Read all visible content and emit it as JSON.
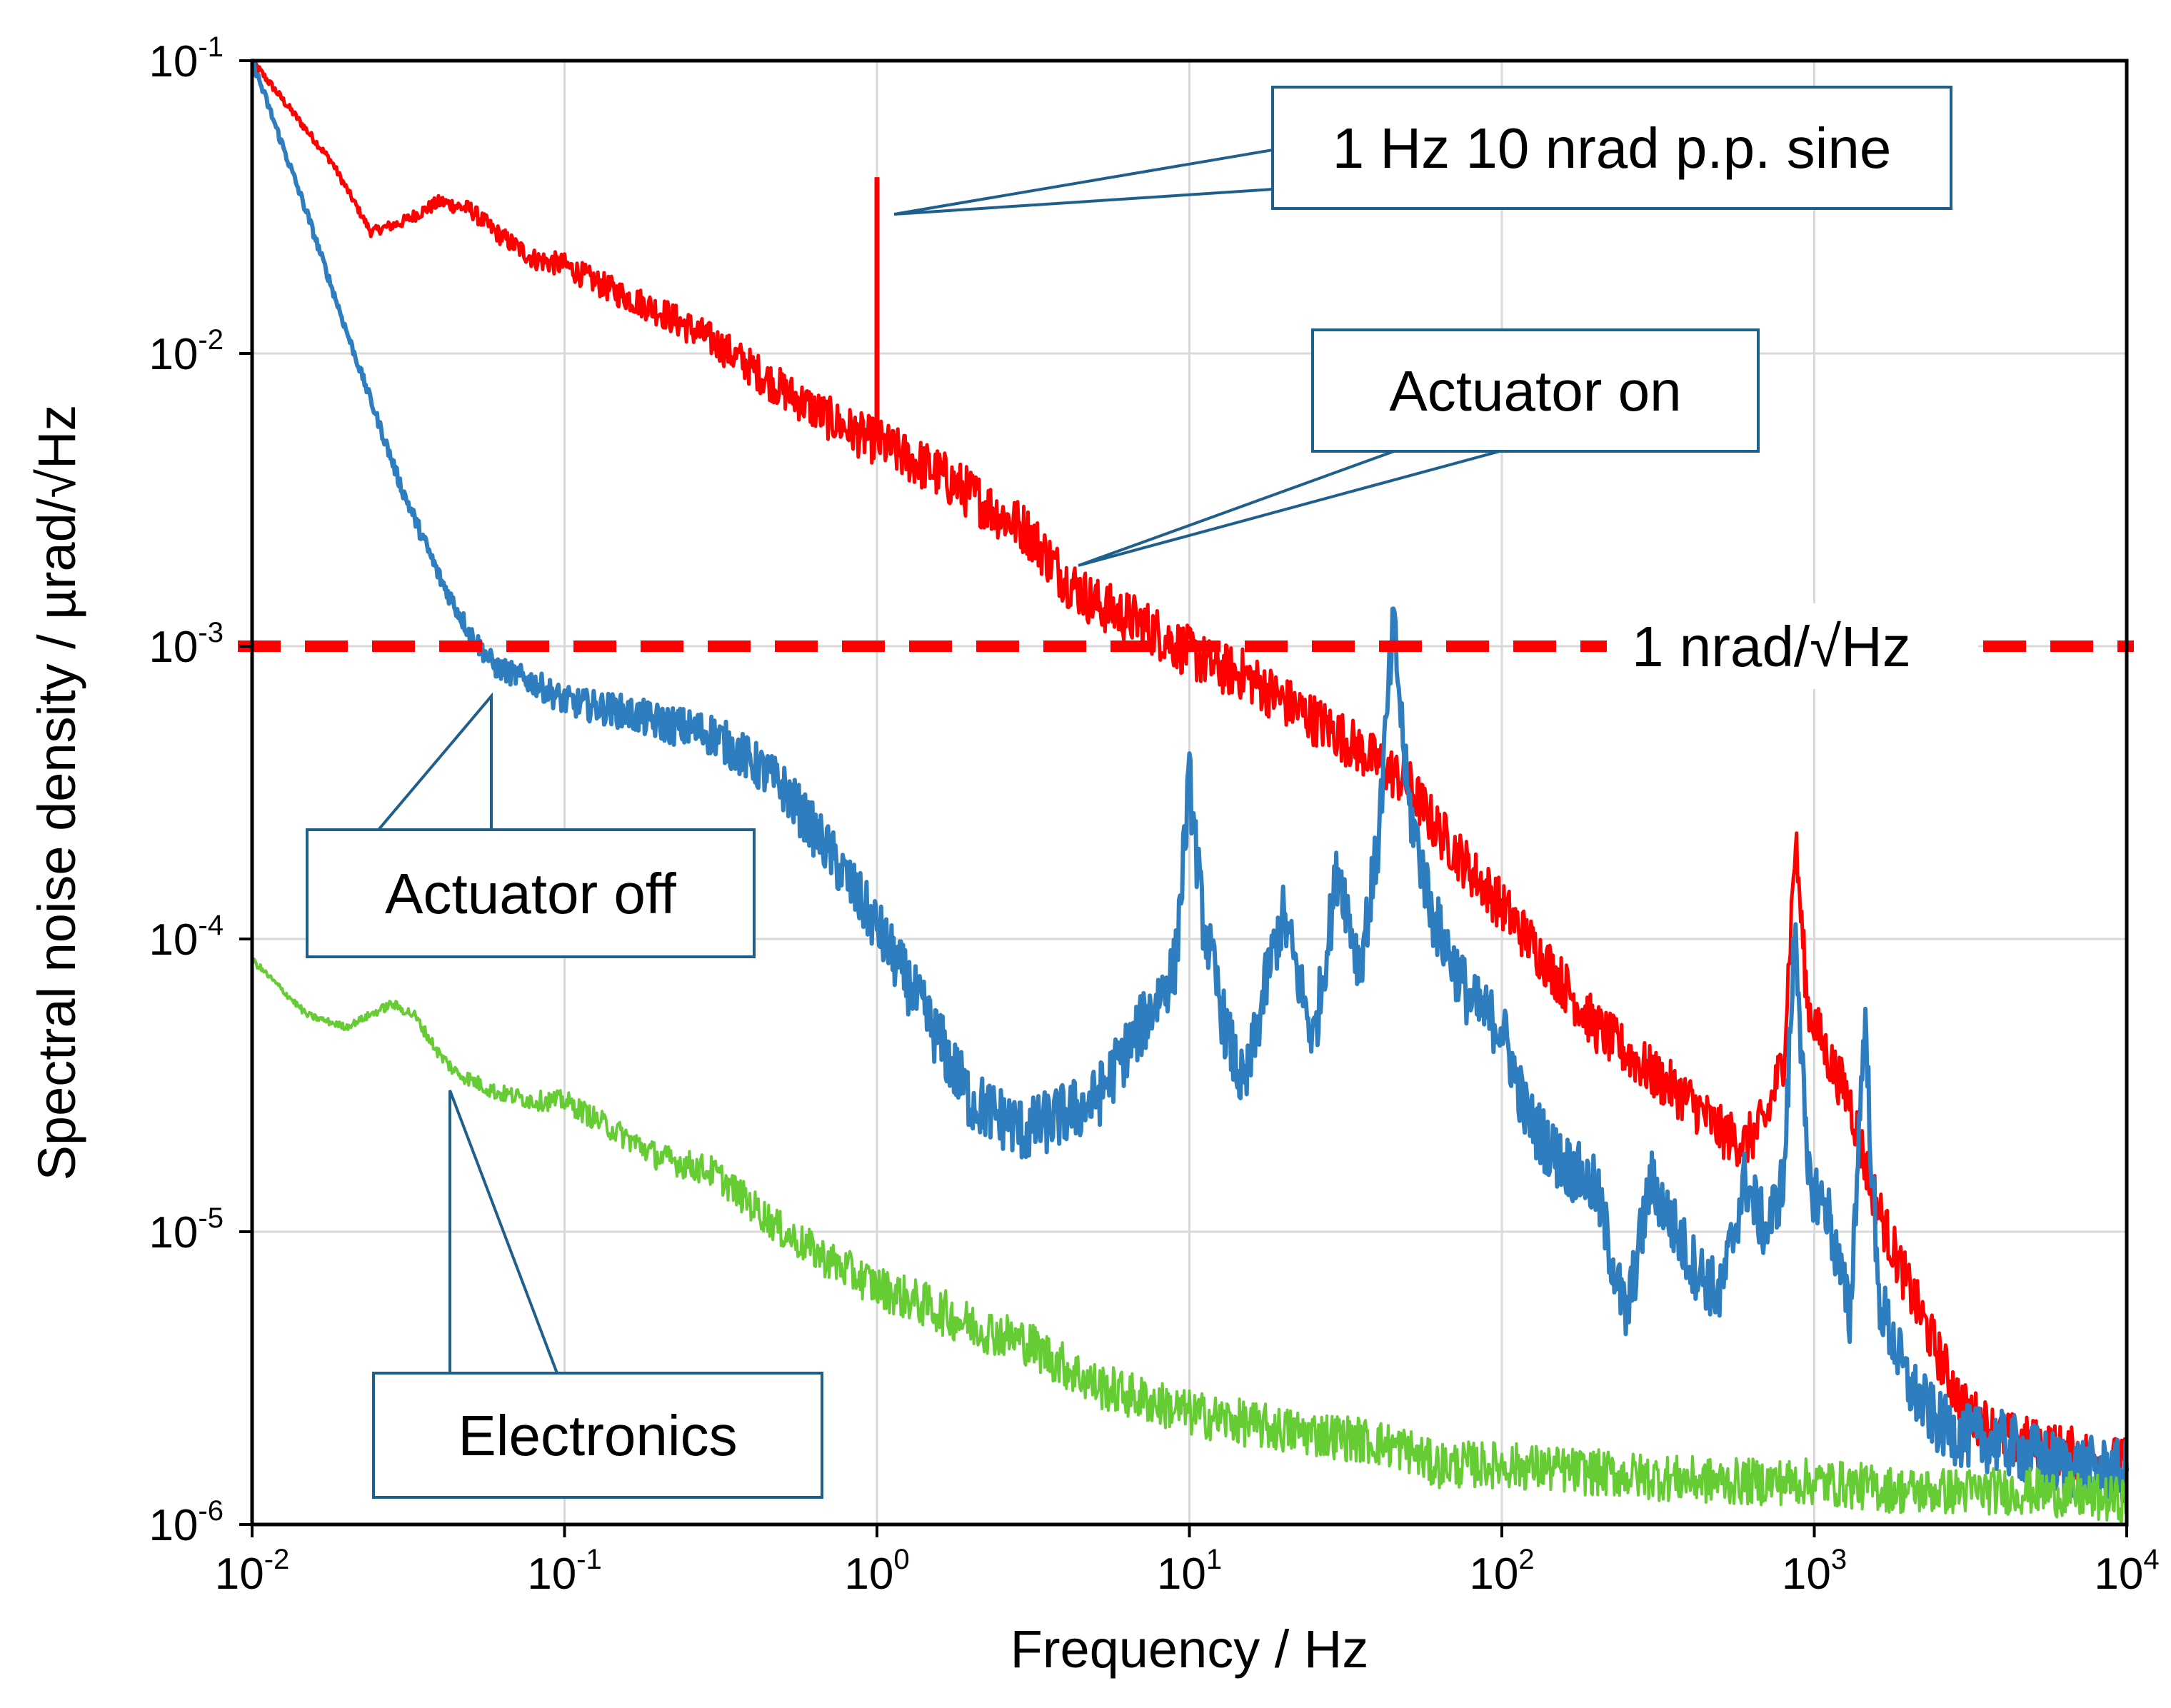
{
  "chart_data": {
    "type": "line",
    "xlabel": "Frequency / Hz",
    "ylabel": "Spectral noise density / µrad/√Hz",
    "xscale": "log",
    "yscale": "log",
    "xlim": [
      0.01,
      10000
    ],
    "ylim": [
      1e-06,
      0.1
    ],
    "grid": true,
    "x_ticks": [
      {
        "base": "10",
        "exp": "-2",
        "value": 0.01
      },
      {
        "base": "10",
        "exp": "-1",
        "value": 0.1
      },
      {
        "base": "10",
        "exp": "0",
        "value": 1
      },
      {
        "base": "10",
        "exp": "1",
        "value": 10
      },
      {
        "base": "10",
        "exp": "2",
        "value": 100
      },
      {
        "base": "10",
        "exp": "3",
        "value": 1000
      },
      {
        "base": "10",
        "exp": "4",
        "value": 10000
      }
    ],
    "y_ticks": [
      {
        "base": "10",
        "exp": "-1",
        "value": 0.1
      },
      {
        "base": "10",
        "exp": "-2",
        "value": 0.01
      },
      {
        "base": "10",
        "exp": "-3",
        "value": 0.001
      },
      {
        "base": "10",
        "exp": "-4",
        "value": 0.0001
      },
      {
        "base": "10",
        "exp": "-5",
        "value": 1e-05
      },
      {
        "base": "10",
        "exp": "-6",
        "value": 1e-06
      }
    ],
    "reference_line": {
      "label": "1 nrad/√Hz",
      "y": 0.001,
      "color": "#ff0000",
      "style": "dashed"
    },
    "series": [
      {
        "name": "Actuator on",
        "color": "#ff0000",
        "x": [
          0.01,
          0.018,
          0.024,
          0.03,
          0.04,
          0.05,
          0.06,
          0.08,
          0.1,
          0.12,
          0.15,
          0.2,
          0.3,
          0.5,
          0.7,
          0.9,
          1.0,
          1.2,
          1.5,
          2.0,
          2.5,
          3.0,
          4.0,
          5.0,
          7.0,
          10,
          12,
          15,
          20,
          30,
          40,
          50,
          60,
          80,
          100,
          150,
          200,
          300,
          400,
          500,
          600,
          700,
          800,
          870,
          950,
          1100,
          1300,
          1500,
          1700,
          2000,
          2500,
          3000,
          4000,
          6000,
          10000
        ],
        "y": [
          0.1,
          0.045,
          0.026,
          0.028,
          0.033,
          0.031,
          0.026,
          0.021,
          0.02,
          0.018,
          0.016,
          0.014,
          0.011,
          0.0075,
          0.006,
          0.0052,
          0.005,
          0.0045,
          0.004,
          0.0033,
          0.0028,
          0.0025,
          0.0017,
          0.0014,
          0.0012,
          0.00095,
          0.00085,
          0.0008,
          0.00065,
          0.0005,
          0.0004,
          0.00034,
          0.00025,
          0.00017,
          0.00013,
          7.5e-05,
          5e-05,
          3.5e-05,
          2.8e-05,
          2.2e-05,
          2e-05,
          2.4e-05,
          4e-05,
          0.00022,
          6e-05,
          4e-05,
          2.8e-05,
          1.5e-05,
          1e-05,
          6.5e-06,
          3.8e-06,
          2.5e-06,
          2e-06,
          1.8e-06,
          1.6e-06
        ]
      },
      {
        "name": "Actuator off",
        "color": "#2e7ebf",
        "x": [
          0.01,
          0.015,
          0.02,
          0.03,
          0.04,
          0.05,
          0.06,
          0.08,
          0.1,
          0.15,
          0.2,
          0.3,
          0.4,
          0.5,
          0.7,
          1.0,
          1.5,
          2.0,
          3.0,
          5.0,
          7.0,
          9.0,
          10,
          11,
          13,
          15,
          18,
          20,
          25,
          30,
          35,
          40,
          45,
          50,
          60,
          80,
          100,
          120,
          150,
          200,
          250,
          300,
          400,
          500,
          600,
          700,
          800,
          870,
          950,
          1100,
          1300,
          1450,
          1600,
          2000,
          2500,
          3000,
          4000,
          6000,
          10000
        ],
        "y": [
          0.1,
          0.03,
          0.012,
          0.0035,
          0.0017,
          0.0011,
          0.00085,
          0.00075,
          0.00065,
          0.0006,
          0.00055,
          0.0005,
          0.0004,
          0.00033,
          0.0002,
          0.00011,
          5e-05,
          2.8e-05,
          2.2e-05,
          2.8e-05,
          5e-05,
          8e-05,
          0.00035,
          0.00012,
          5e-05,
          3e-05,
          8e-05,
          0.00012,
          4.5e-05,
          0.00018,
          8e-05,
          0.0002,
          0.0012,
          0.0003,
          0.00012,
          6e-05,
          5e-05,
          2.5e-05,
          1.8e-05,
          1.4e-05,
          5e-06,
          1.5e-05,
          8e-06,
          6e-06,
          1.5e-05,
          1e-05,
          1.5e-05,
          0.00012,
          1.5e-05,
          1.2e-05,
          5e-06,
          5.5e-05,
          6e-06,
          3e-06,
          2.2e-06,
          2e-06,
          1.9e-06,
          1.6e-06,
          1.5e-06
        ]
      },
      {
        "name": "Electronics",
        "color": "#66cc33",
        "x": [
          0.01,
          0.015,
          0.02,
          0.028,
          0.033,
          0.04,
          0.045,
          0.06,
          0.08,
          0.1,
          0.12,
          0.2,
          0.3,
          0.5,
          0.7,
          1.0,
          1.5,
          2.0,
          3.0,
          5.0,
          10,
          20,
          30,
          40,
          50,
          60,
          100,
          200,
          500,
          1000,
          2000,
          5000,
          10000
        ],
        "y": [
          8.5e-05,
          5.5e-05,
          5e-05,
          6e-05,
          5.5e-05,
          4e-05,
          3.5e-05,
          3e-05,
          2.8e-05,
          2.8e-05,
          2.5e-05,
          1.8e-05,
          1.6e-05,
          1e-05,
          8e-06,
          6.5e-06,
          5.5e-06,
          4.8e-06,
          4.2e-06,
          3e-06,
          2.4e-06,
          2.1e-06,
          2e-06,
          1.9e-06,
          1.8e-06,
          1.6e-06,
          1.6e-06,
          1.5e-06,
          1.4e-06,
          1.4e-06,
          1.3e-06,
          1.3e-06,
          1.2e-06
        ]
      }
    ],
    "annotations": [
      {
        "key": "sine",
        "text": "1 Hz 10 nrad p.p. sine",
        "points_to": {
          "x": 1.0,
          "y": 0.022
        }
      },
      {
        "key": "actuator_on",
        "text": "Actuator  on",
        "points_to": {
          "x": 4.2,
          "y": 0.0018
        }
      },
      {
        "key": "actuator_off",
        "text": "Actuator  off",
        "points_to": {
          "x": 0.055,
          "y": 0.00075
        }
      },
      {
        "key": "electronics",
        "text": "Electronics",
        "points_to": {
          "x": 0.045,
          "y": 2.8e-05
        }
      }
    ]
  }
}
